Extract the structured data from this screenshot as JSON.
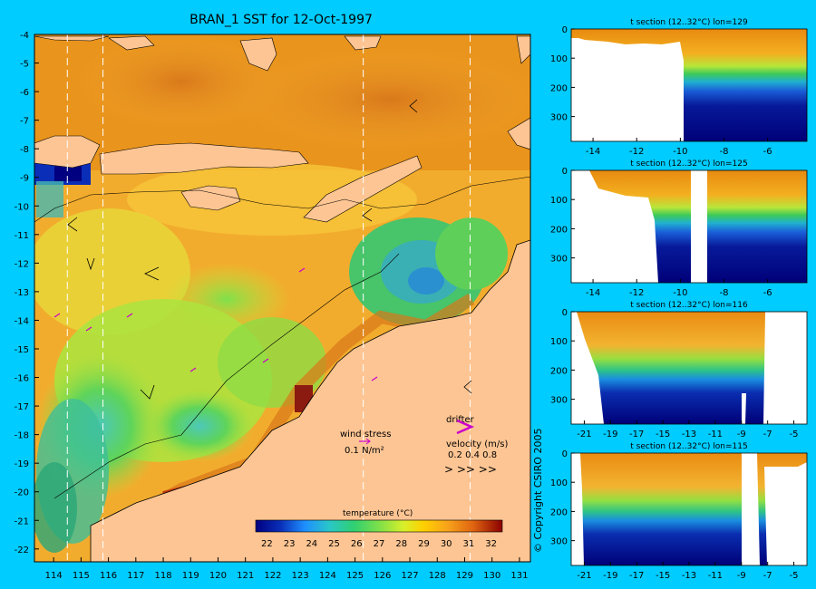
{
  "title": "BRAN_1 SST for 12-Oct-1997",
  "copyright": "© Copyright CSIRO 2005",
  "colors": {
    "background": "#00ccff",
    "land": "#fdc593",
    "white": "#ffffff"
  },
  "map": {
    "x_ticks": [
      "114",
      "115",
      "116",
      "117",
      "118",
      "119",
      "120",
      "121",
      "122",
      "123",
      "124",
      "125",
      "126",
      "127",
      "128",
      "129",
      "130",
      "131"
    ],
    "y_ticks": [
      "-4",
      "-5",
      "-6",
      "-7",
      "-8",
      "-9",
      "-10",
      "-11",
      "-12",
      "-13",
      "-14",
      "-15",
      "-16",
      "-17",
      "-18",
      "-19",
      "-20",
      "-21",
      "-22"
    ],
    "section_lons": [
      114.5,
      115.8,
      125.3,
      129.2
    ],
    "wind_stress_label": "wind stress",
    "wind_stress_unit": "0.1 N/m²",
    "drifter_label": "drifter",
    "velocity_label": "velocity (m/s)",
    "velocity_scale": "0.2 0.4 0.8",
    "velocity_arrows": ">  >>  >>",
    "colorbar_label": "temperature (°C)",
    "colorbar_ticks": [
      "22",
      "23",
      "24",
      "25",
      "26",
      "27",
      "28",
      "29",
      "30",
      "31",
      "32"
    ]
  },
  "sections": [
    {
      "title": "t section (12..32°C) lon=129",
      "x_ticks": [
        "-14",
        "-12",
        "-10",
        "-8",
        "-6"
      ],
      "y_ticks": [
        "0",
        "100",
        "200",
        "300"
      ]
    },
    {
      "title": "t section (12..32°C) lon=125",
      "x_ticks": [
        "-14",
        "-12",
        "-10",
        "-8",
        "-6"
      ],
      "y_ticks": [
        "0",
        "100",
        "200",
        "300"
      ]
    },
    {
      "title": "t section (12..32°C) lon=116",
      "x_ticks": [
        "-21",
        "-19",
        "-17",
        "-15",
        "-13",
        "-11",
        "-9",
        "-7",
        "-5"
      ],
      "y_ticks": [
        "0",
        "100",
        "200",
        "300"
      ]
    },
    {
      "title": "t section (12..32°C) lon=115",
      "x_ticks": [
        "-21",
        "-19",
        "-17",
        "-15",
        "-13",
        "-11",
        "-9",
        "-7",
        "-5"
      ],
      "y_ticks": [
        "0",
        "100",
        "200",
        "300"
      ]
    }
  ]
}
